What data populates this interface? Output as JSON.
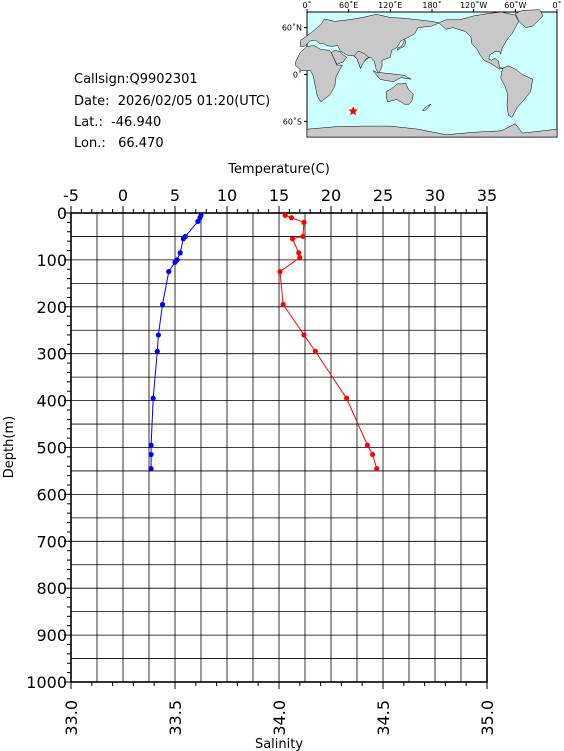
{
  "info": {
    "callsign": "Callsign:Q9902301",
    "date": "Date:  2026/02/05 01:20(UTC)",
    "lat": "Lat.:  -46.940",
    "lon": "Lon.:   66.470"
  },
  "map": {
    "lon_ticks": [
      "0˚",
      "60˚E",
      "120˚E",
      "180˚",
      "120˚W",
      "60˚W",
      "0˚"
    ],
    "lat_ticks": [
      "60˚N",
      "0˚",
      "60˚S"
    ],
    "ocean_color": "#ccffff",
    "land_color": "#c8c8c8",
    "marker": {
      "lon": 66.47,
      "lat": -46.94,
      "color": "#ff0000",
      "icon": "star-icon"
    }
  },
  "chart_data": {
    "type": "line",
    "ylabel": "Depth(m)",
    "ylim": [
      1000,
      0
    ],
    "yticks": [
      0,
      100,
      200,
      300,
      400,
      500,
      600,
      700,
      800,
      900,
      1000
    ],
    "grid": true,
    "top_axis": {
      "label": "Temperature(C)",
      "range": [
        -5,
        35
      ],
      "ticks": [
        -5,
        0,
        5,
        10,
        15,
        20,
        25,
        30,
        35
      ]
    },
    "bottom_axis": {
      "label": "Salinity",
      "range": [
        33.0,
        35.0
      ],
      "ticks": [
        "33.0",
        "33.5",
        "34.0",
        "34.5",
        "35.0"
      ]
    },
    "series": [
      {
        "axis": "top",
        "color": "#0000ff",
        "x": [
          7.5,
          7.4,
          7.2,
          6.0,
          5.8,
          5.5,
          5.2,
          5.0,
          4.4,
          3.8,
          3.4,
          3.3,
          2.9,
          2.7,
          2.7,
          2.7
        ],
        "y": [
          5,
          10,
          18,
          50,
          55,
          85,
          100,
          105,
          125,
          195,
          260,
          295,
          395,
          495,
          515,
          545
        ]
      },
      {
        "axis": "top",
        "color": "#ff0000",
        "x": [
          15.6,
          16.2,
          17.4,
          17.3,
          16.3,
          16.9,
          17.0,
          15.1,
          15.4,
          17.4,
          18.5,
          21.5,
          23.5,
          24.0,
          24.4
        ],
        "y": [
          5,
          10,
          20,
          50,
          55,
          85,
          95,
          125,
          195,
          260,
          295,
          395,
          495,
          515,
          545
        ]
      }
    ]
  }
}
